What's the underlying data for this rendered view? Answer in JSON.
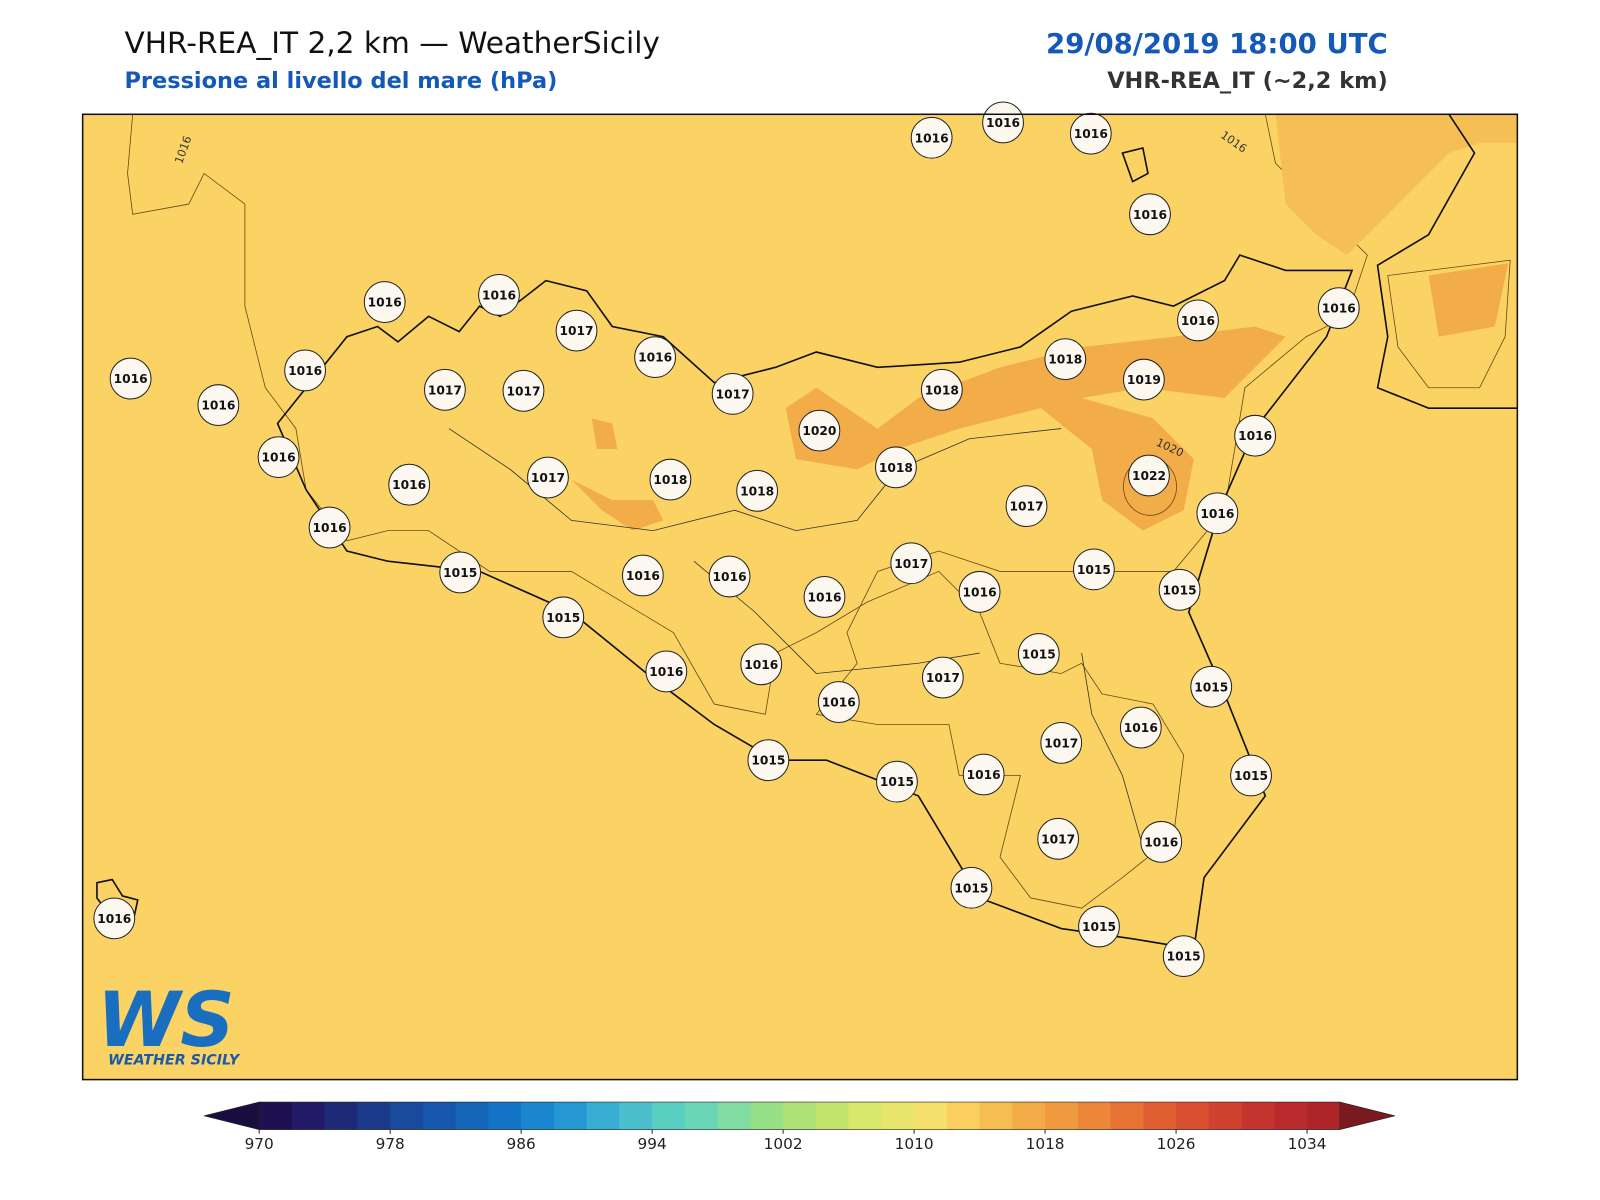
{
  "header": {
    "title": "VHR-REA_IT 2,2 km — WeatherSicily",
    "subtitle": "Pressione al livello del mare (hPa)",
    "datetime": "29/08/2019 18:00 UTC",
    "model": "VHR-REA_IT (~2,2 km)"
  },
  "map": {
    "stations": [
      1016,
      1016,
      1016,
      1016,
      1016,
      1016,
      1017,
      1016,
      1016,
      1016,
      1016,
      1016,
      1017,
      1017,
      1017,
      1018,
      1019,
      1018,
      1016,
      1020,
      1016,
      1016,
      1016,
      1017,
      1018,
      1018,
      1018,
      1022,
      1017,
      1016,
      1016,
      1015,
      1016,
      1016,
      1017,
      1015,
      1015,
      1016,
      1016,
      1015,
      1015,
      1016,
      1016,
      1017,
      1015,
      1016,
      1017,
      1016,
      1015,
      1015,
      1016,
      1015,
      1017,
      1016,
      1015,
      1016,
      1015,
      1015
    ],
    "contour_labels": [
      "1016",
      "1016",
      "1020"
    ]
  },
  "logo": {
    "mark": "WS",
    "name": "WEATHER SICILY"
  },
  "colorbar": {
    "lim": [
      970,
      1036
    ],
    "ticks": [
      970,
      978,
      986,
      994,
      1002,
      1010,
      1018,
      1026,
      1034
    ],
    "colors": [
      "#1f1150",
      "#221a66",
      "#1d2a78",
      "#1b3a8a",
      "#1a4a9c",
      "#1656ac",
      "#1565b9",
      "#1373c6",
      "#1a86cf",
      "#2597d2",
      "#38afd2",
      "#4cbfcd",
      "#5ccfc3",
      "#6ad6b5",
      "#80dca0",
      "#97e088",
      "#aee277",
      "#c4e56c",
      "#d8e86c",
      "#e8e56c",
      "#f6e06c",
      "#fbcf5f",
      "#f6bd52",
      "#f3ab48",
      "#f09a40",
      "#ec8638",
      "#e67234",
      "#e05f31",
      "#d8502f",
      "#cf4230",
      "#c4342e",
      "#b92a2c",
      "#ad2429"
    ],
    "under": "#1a0d40",
    "over": "#7a1a1e"
  }
}
